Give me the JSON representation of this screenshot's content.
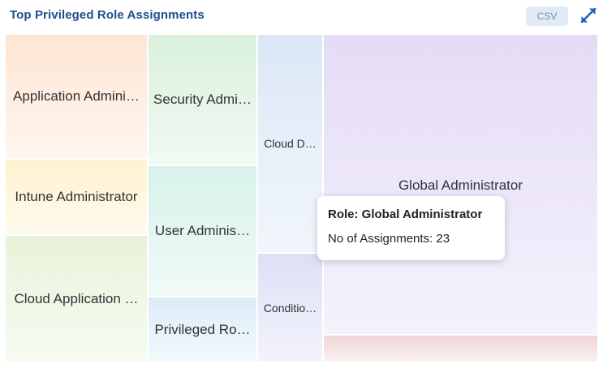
{
  "header": {
    "title": "Top Privileged Role Assignments",
    "csv_label": "CSV"
  },
  "treemap": {
    "cells": [
      {
        "label": "Application Admini…",
        "color": "#fde6d4"
      },
      {
        "label": "Intune Administrator",
        "color": "#fef3cf"
      },
      {
        "label": "Cloud Application …",
        "color": "#e8f3da"
      },
      {
        "label": "Security Admi…",
        "color": "#daf0de"
      },
      {
        "label": "User Adminis…",
        "color": "#d8f2ec"
      },
      {
        "label": "Privileged Ro…",
        "color": "#dcedf8"
      },
      {
        "label": "Cloud D…",
        "color": "#dbe7f6"
      },
      {
        "label": "Conditio…",
        "color": "#dedff6"
      },
      {
        "label": "Global Administrator",
        "color": "#e4dcf6"
      },
      {
        "label": "",
        "color": "#f1d6d6"
      }
    ]
  },
  "tooltip": {
    "title": "Role: Global Administrator",
    "line": "No of Assignments: 23"
  },
  "chart_data": {
    "type": "treemap",
    "title": "Top Privileged Role Assignments",
    "hovered": {
      "role": "Global Administrator",
      "assignments": 23
    }
  }
}
